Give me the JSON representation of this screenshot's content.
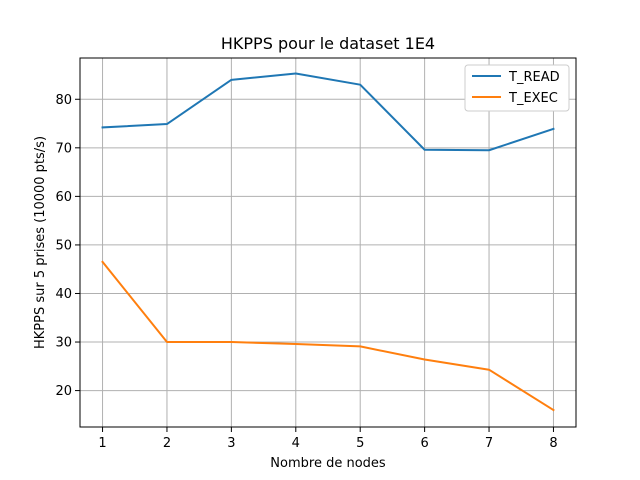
{
  "chart_data": {
    "type": "line",
    "title": "HKPPS pour le dataset 1E4",
    "xlabel": "Nombre de nodes",
    "ylabel": "HKPPS sur 5 prises (10000 pts/s)",
    "x": [
      1,
      2,
      3,
      4,
      5,
      6,
      7,
      8
    ],
    "xticks": [
      "1",
      "2",
      "3",
      "4",
      "5",
      "6",
      "7",
      "8"
    ],
    "yticks": [
      20,
      30,
      40,
      50,
      60,
      70,
      80
    ],
    "xlim": [
      0.65,
      8.35
    ],
    "ylim": [
      12.5,
      88.5
    ],
    "grid": true,
    "legend_position": "top-right",
    "series": [
      {
        "name": "T_READ",
        "color": "#1f77b4",
        "values": [
          74.2,
          74.9,
          84.0,
          85.3,
          83.0,
          69.6,
          69.5,
          73.9
        ]
      },
      {
        "name": "T_EXEC",
        "color": "#ff7f0e",
        "values": [
          46.5,
          30.0,
          30.0,
          29.6,
          29.1,
          26.4,
          24.3,
          16.0
        ]
      }
    ]
  }
}
